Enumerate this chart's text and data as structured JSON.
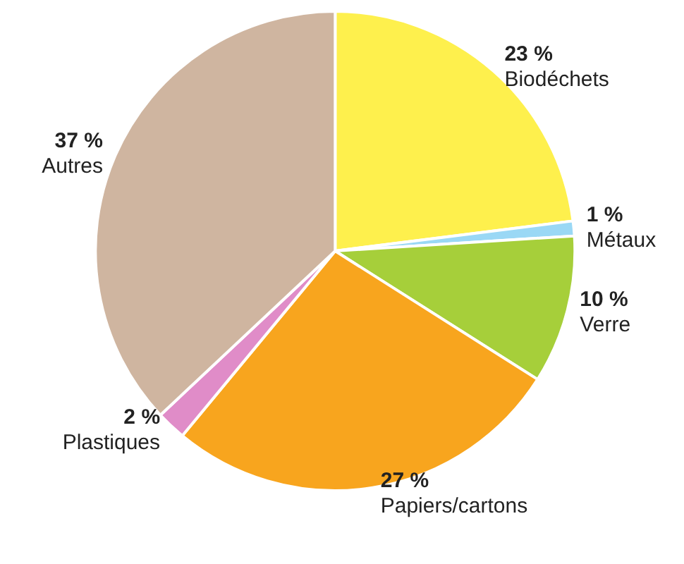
{
  "chart_data": {
    "type": "pie",
    "categories": [
      "Biodéchets",
      "Métaux",
      "Verre",
      "Papiers/cartons",
      "Plastiques",
      "Autres"
    ],
    "values": [
      23,
      1,
      10,
      27,
      2,
      37
    ],
    "value_labels": [
      "23 %",
      "1 %",
      "10 %",
      "27 %",
      "2 %",
      "37 %"
    ],
    "colors": [
      "#fef04d",
      "#9ad8f5",
      "#a6cf3a",
      "#f8a51e",
      "#e08cc8",
      "#cfb5a0"
    ],
    "legend": false
  }
}
